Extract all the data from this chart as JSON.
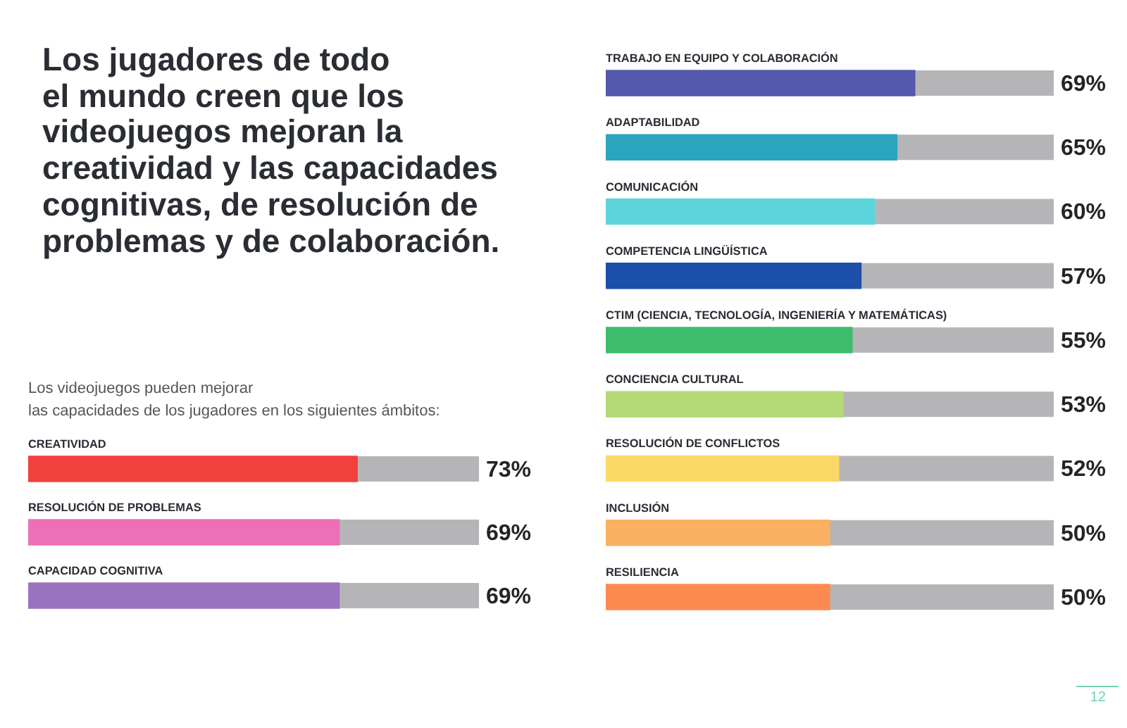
{
  "chart_data": [
    {
      "type": "bar",
      "title": "Los jugadores de todo\nel mundo creen que los\nvideojuegos mejoran la\ncreatividad y las capacidades\ncognitivas, de resolución de\nproblemas y de colaboración.",
      "subtitle": "Los videojuegos pueden mejorar\nlas capacidades de los jugadores en los siguientes ámbitos:",
      "orientation": "horizontal",
      "categories": [
        "CREATIVIDAD",
        "RESOLUCIÓN DE PROBLEMAS",
        "CAPACIDAD COGNITIVA"
      ],
      "values": [
        73,
        69,
        69
      ],
      "colors": [
        "#f2403c",
        "#ec6fb8",
        "#9b72bd"
      ],
      "value_labels": [
        "73%",
        "69%",
        "69%"
      ],
      "xlim": [
        0,
        100
      ],
      "tick_labels": "y"
    },
    {
      "type": "bar",
      "orientation": "horizontal",
      "categories": [
        "TRABAJO EN EQUIPO Y COLABORACIÓN",
        "ADAPTABILIDAD",
        "COMUNICACIÓN",
        "COMPETENCIA LINGÜÍSTICA",
        "CTIM (CIENCIA, TECNOLOGÍA, INGENIERÍA Y MATEMÁTICAS)",
        "CONCIENCIA CULTURAL",
        "RESOLUCIÓN DE CONFLICTOS",
        "INCLUSIÓN",
        "RESILIENCIA"
      ],
      "values": [
        69,
        65,
        60,
        57,
        55,
        53,
        52,
        50,
        50
      ],
      "colors": [
        "#5559ad",
        "#2aa5bd",
        "#5dd3dc",
        "#1c4fa9",
        "#3dbd6d",
        "#b2d974",
        "#fcd966",
        "#fbb062",
        "#fc8a50"
      ],
      "value_labels": [
        "69%",
        "65%",
        "60%",
        "57%",
        "55%",
        "53%",
        "52%",
        "50%",
        "50%"
      ],
      "xlim": [
        0,
        100
      ],
      "tick_labels": "y",
      "annotations": [
        "12"
      ]
    }
  ]
}
